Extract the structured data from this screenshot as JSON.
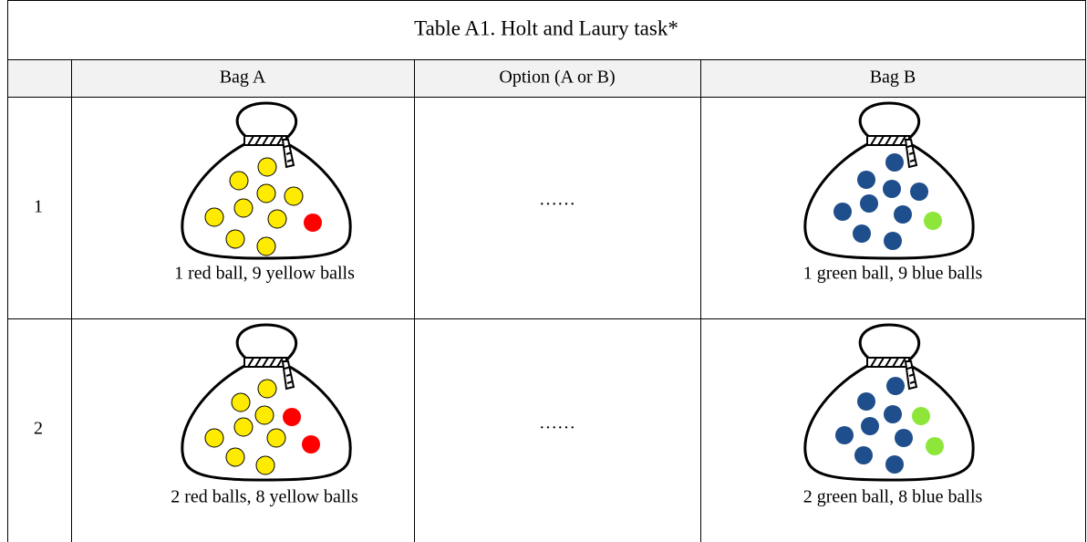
{
  "title": "Table A1. Holt and Laury task*",
  "table": {
    "header": [
      "Bag A",
      "Option (A or B)",
      "Bag B"
    ],
    "rows": [
      {
        "number": "1",
        "bag_a": "1 red ball, 9 yellow balls",
        "option": "……",
        "bag_b": "1 green ball, 9 blue balls"
      },
      {
        "number": "2",
        "bag_a": "2 red balls, 8 yellow balls",
        "option": "……",
        "bag_b": "2 green ball, 8 blue balls"
      }
    ]
  }
}
